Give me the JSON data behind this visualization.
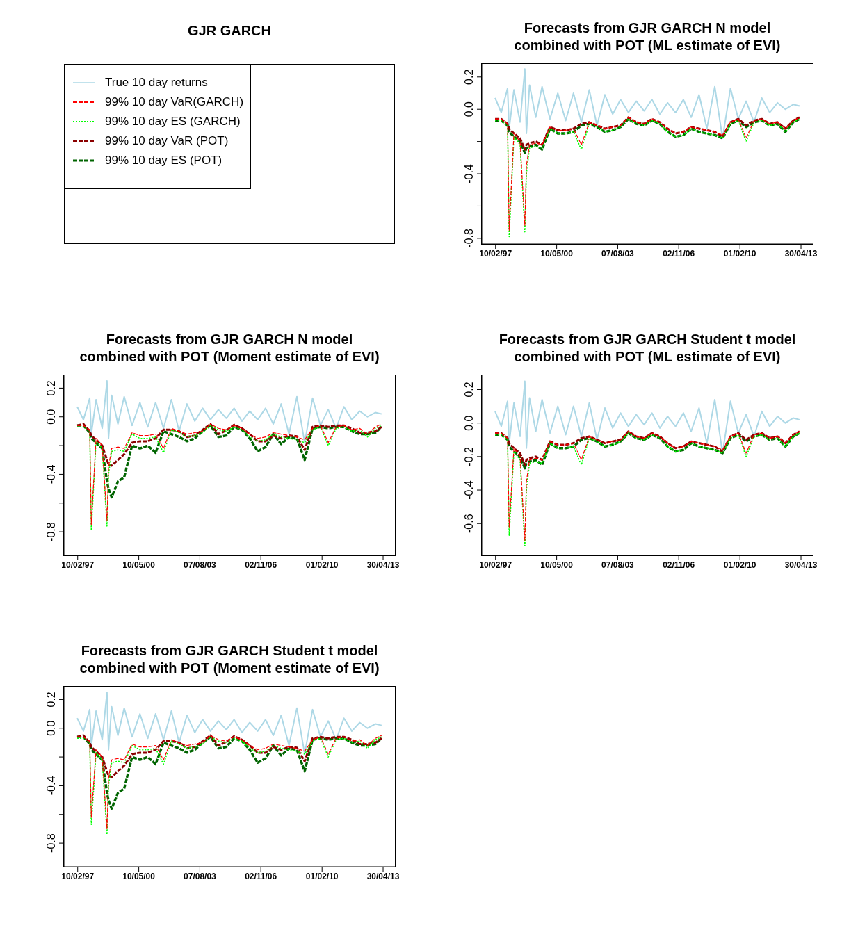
{
  "chart_data": [
    {
      "type": "other",
      "title": "GJR GARCH",
      "legend": "top left",
      "series": [
        {
          "name": "True 10 day returns",
          "color": "#add8e6",
          "line_style": "solid"
        },
        {
          "name": "99% 10 day VaR(GARCH)",
          "color": "#ff0000",
          "line_style": "dashed"
        },
        {
          "name": "99% 10 day ES (GARCH)",
          "color": "#00ff00",
          "line_style": "dotted"
        },
        {
          "name": "99% 10 day VaR (POT)",
          "color": "#8b0000",
          "line_style": "dashed"
        },
        {
          "name": "99% 10 day ES (POT)",
          "color": "#006400",
          "line_style": "dashed"
        }
      ]
    },
    {
      "type": "line",
      "title": "Forecasts from GJR GARCH N model\ncombined with POT (ML estimate of EVI)",
      "xlim": [
        "1996-05-20",
        "2013-12-15"
      ],
      "ylim": [
        -0.835,
        0.281
      ],
      "xticks": [
        {
          "value": "1997-02-10",
          "label": "10/02/97"
        },
        {
          "value": "2000-05-10",
          "label": "10/05/00"
        },
        {
          "value": "2003-08-07",
          "label": "07/08/03"
        },
        {
          "value": "2006-11-02",
          "label": "02/11/06"
        },
        {
          "value": "2010-02-01",
          "label": "01/02/10"
        },
        {
          "value": "2013-04-30",
          "label": "30/04/13"
        }
      ],
      "yticks": [
        0.2,
        {
          "value": 0,
          "label": "0.0"
        },
        {
          "value": -0.2,
          "label": null
        },
        -0.4,
        {
          "value": -0.6,
          "label": null
        },
        -0.8
      ],
      "x": [
        "1997-02",
        "1997-06",
        "1997-10",
        "1997-11",
        "1998-02",
        "1998-06",
        "1998-09",
        "1998-10",
        "1998-12",
        "1999-04",
        "1999-08",
        "2000-01",
        "2000-06",
        "2000-11",
        "2001-04",
        "2001-09",
        "2002-02",
        "2002-07",
        "2002-12",
        "2003-05",
        "2003-10",
        "2004-03",
        "2004-08",
        "2005-01",
        "2005-06",
        "2005-11",
        "2006-04",
        "2006-09",
        "2007-02",
        "2007-07",
        "2007-12",
        "2008-05",
        "2008-10",
        "2009-03",
        "2009-08",
        "2010-01",
        "2010-06",
        "2010-11",
        "2011-04",
        "2011-09",
        "2012-02",
        "2012-07",
        "2012-12",
        "2013-04"
      ],
      "series": [
        {
          "color": "#add8e6",
          "line_style": "solid",
          "values": [
            0.07,
            -0.02,
            0.13,
            -0.12,
            0.12,
            -0.08,
            0.25,
            -0.15,
            0.15,
            -0.05,
            0.14,
            -0.06,
            0.1,
            -0.07,
            0.1,
            -0.08,
            0.12,
            -0.1,
            0.09,
            -0.03,
            0.06,
            -0.02,
            0.05,
            -0.01,
            0.06,
            -0.03,
            0.04,
            -0.02,
            0.06,
            -0.05,
            0.09,
            -0.12,
            0.14,
            -0.18,
            0.13,
            -0.06,
            0.05,
            -0.08,
            0.07,
            -0.02,
            0.04,
            0.0,
            0.03,
            0.02
          ]
        },
        {
          "color": "#ff0000",
          "line_style": "dashed",
          "values": [
            -0.06,
            -0.06,
            -0.09,
            -0.75,
            -0.15,
            -0.2,
            -0.72,
            -0.35,
            -0.22,
            -0.21,
            -0.22,
            -0.11,
            -0.13,
            -0.13,
            -0.12,
            -0.22,
            -0.08,
            -0.1,
            -0.12,
            -0.11,
            -0.1,
            -0.05,
            -0.08,
            -0.09,
            -0.06,
            -0.08,
            -0.12,
            -0.15,
            -0.14,
            -0.11,
            -0.12,
            -0.13,
            -0.14,
            -0.16,
            -0.08,
            -0.06,
            -0.18,
            -0.07,
            -0.06,
            -0.09,
            -0.08,
            -0.12,
            -0.07,
            -0.05
          ]
        },
        {
          "color": "#00ff00",
          "line_style": "dotted",
          "values": [
            -0.07,
            -0.07,
            -0.1,
            -0.79,
            -0.17,
            -0.22,
            -0.76,
            -0.4,
            -0.24,
            -0.23,
            -0.24,
            -0.12,
            -0.15,
            -0.15,
            -0.14,
            -0.25,
            -0.09,
            -0.11,
            -0.14,
            -0.13,
            -0.11,
            -0.06,
            -0.09,
            -0.1,
            -0.07,
            -0.09,
            -0.14,
            -0.17,
            -0.16,
            -0.12,
            -0.14,
            -0.15,
            -0.16,
            -0.18,
            -0.09,
            -0.07,
            -0.2,
            -0.08,
            -0.07,
            -0.1,
            -0.09,
            -0.14,
            -0.08,
            -0.06
          ]
        },
        {
          "color": "#8b0000",
          "line_style": "dashed",
          "values": [
            -0.06,
            -0.06,
            -0.09,
            -0.12,
            -0.15,
            -0.18,
            -0.25,
            -0.22,
            -0.21,
            -0.2,
            -0.22,
            -0.11,
            -0.13,
            -0.13,
            -0.12,
            -0.09,
            -0.08,
            -0.1,
            -0.12,
            -0.11,
            -0.1,
            -0.05,
            -0.08,
            -0.09,
            -0.06,
            -0.08,
            -0.12,
            -0.15,
            -0.14,
            -0.11,
            -0.12,
            -0.13,
            -0.14,
            -0.17,
            -0.08,
            -0.06,
            -0.1,
            -0.07,
            -0.06,
            -0.09,
            -0.08,
            -0.12,
            -0.07,
            -0.05
          ]
        },
        {
          "color": "#006400",
          "line_style": "dashed",
          "values": [
            -0.07,
            -0.07,
            -0.1,
            -0.14,
            -0.17,
            -0.2,
            -0.27,
            -0.24,
            -0.23,
            -0.22,
            -0.25,
            -0.12,
            -0.15,
            -0.15,
            -0.14,
            -0.1,
            -0.09,
            -0.11,
            -0.14,
            -0.13,
            -0.11,
            -0.06,
            -0.09,
            -0.1,
            -0.07,
            -0.09,
            -0.14,
            -0.17,
            -0.16,
            -0.12,
            -0.14,
            -0.15,
            -0.16,
            -0.18,
            -0.09,
            -0.07,
            -0.11,
            -0.08,
            -0.07,
            -0.1,
            -0.09,
            -0.14,
            -0.08,
            -0.06
          ]
        }
      ]
    },
    {
      "type": "line",
      "title": "Forecasts from GJR GARCH N model\ncombined with POT (Moment estimate of EVI)",
      "xlim": [
        "1996-05-20",
        "2013-12-15"
      ],
      "ylim": [
        -0.964,
        0.289
      ],
      "xticks": [
        {
          "value": "1997-02-10",
          "label": "10/02/97"
        },
        {
          "value": "2000-05-10",
          "label": "10/05/00"
        },
        {
          "value": "2003-08-07",
          "label": "07/08/03"
        },
        {
          "value": "2006-11-02",
          "label": "02/11/06"
        },
        {
          "value": "2010-02-01",
          "label": "01/02/10"
        },
        {
          "value": "2013-04-30",
          "label": "30/04/13"
        }
      ],
      "yticks": [
        0.2,
        {
          "value": 0,
          "label": "0.0"
        },
        {
          "value": -0.2,
          "label": null
        },
        -0.4,
        {
          "value": -0.6,
          "label": null
        },
        -0.8
      ],
      "x": [
        "1997-02",
        "1997-06",
        "1997-10",
        "1997-11",
        "1998-02",
        "1998-06",
        "1998-09",
        "1998-10",
        "1998-12",
        "1999-04",
        "1999-08",
        "2000-01",
        "2000-06",
        "2000-11",
        "2001-04",
        "2001-09",
        "2002-02",
        "2002-07",
        "2002-12",
        "2003-05",
        "2003-10",
        "2004-03",
        "2004-08",
        "2005-01",
        "2005-06",
        "2005-11",
        "2006-04",
        "2006-09",
        "2007-02",
        "2007-07",
        "2007-12",
        "2008-05",
        "2008-10",
        "2009-03",
        "2009-08",
        "2010-01",
        "2010-06",
        "2010-11",
        "2011-04",
        "2011-09",
        "2012-02",
        "2012-07",
        "2012-12",
        "2013-04"
      ],
      "series": [
        {
          "color": "#add8e6",
          "line_style": "solid",
          "values": [
            0.07,
            -0.02,
            0.13,
            -0.12,
            0.12,
            -0.08,
            0.25,
            -0.15,
            0.15,
            -0.05,
            0.14,
            -0.06,
            0.1,
            -0.07,
            0.1,
            -0.08,
            0.12,
            -0.1,
            0.09,
            -0.03,
            0.06,
            -0.02,
            0.05,
            -0.01,
            0.06,
            -0.03,
            0.04,
            -0.02,
            0.06,
            -0.05,
            0.09,
            -0.12,
            0.14,
            -0.18,
            0.13,
            -0.06,
            0.05,
            -0.08,
            0.07,
            -0.02,
            0.04,
            0.0,
            0.03,
            0.02
          ]
        },
        {
          "color": "#ff0000",
          "line_style": "dashed",
          "values": [
            -0.06,
            -0.06,
            -0.09,
            -0.75,
            -0.15,
            -0.2,
            -0.72,
            -0.35,
            -0.22,
            -0.21,
            -0.22,
            -0.11,
            -0.13,
            -0.13,
            -0.12,
            -0.22,
            -0.08,
            -0.1,
            -0.12,
            -0.11,
            -0.1,
            -0.05,
            -0.08,
            -0.09,
            -0.06,
            -0.08,
            -0.12,
            -0.15,
            -0.14,
            -0.11,
            -0.12,
            -0.13,
            -0.14,
            -0.16,
            -0.08,
            -0.06,
            -0.18,
            -0.07,
            -0.06,
            -0.09,
            -0.08,
            -0.12,
            -0.07,
            -0.05
          ]
        },
        {
          "color": "#00ff00",
          "line_style": "dotted",
          "values": [
            -0.07,
            -0.07,
            -0.1,
            -0.79,
            -0.17,
            -0.22,
            -0.76,
            -0.4,
            -0.24,
            -0.23,
            -0.24,
            -0.12,
            -0.15,
            -0.15,
            -0.14,
            -0.25,
            -0.09,
            -0.11,
            -0.14,
            -0.13,
            -0.11,
            -0.06,
            -0.09,
            -0.1,
            -0.07,
            -0.09,
            -0.14,
            -0.17,
            -0.16,
            -0.12,
            -0.14,
            -0.15,
            -0.16,
            -0.18,
            -0.09,
            -0.07,
            -0.2,
            -0.08,
            -0.07,
            -0.1,
            -0.09,
            -0.14,
            -0.08,
            -0.06
          ]
        },
        {
          "color": "#8b0000",
          "line_style": "dashed",
          "values": [
            -0.06,
            -0.05,
            -0.1,
            -0.13,
            -0.16,
            -0.2,
            -0.3,
            -0.33,
            -0.34,
            -0.3,
            -0.26,
            -0.18,
            -0.17,
            -0.17,
            -0.15,
            -0.09,
            -0.09,
            -0.1,
            -0.14,
            -0.13,
            -0.09,
            -0.05,
            -0.12,
            -0.095,
            -0.055,
            -0.08,
            -0.12,
            -0.17,
            -0.17,
            -0.13,
            -0.15,
            -0.13,
            -0.135,
            -0.23,
            -0.07,
            -0.06,
            -0.07,
            -0.06,
            -0.06,
            -0.08,
            -0.11,
            -0.11,
            -0.1,
            -0.07
          ]
        },
        {
          "color": "#006400",
          "line_style": "dashed",
          "values": [
            -0.06,
            -0.06,
            -0.11,
            -0.15,
            -0.18,
            -0.22,
            -0.45,
            -0.5,
            -0.56,
            -0.45,
            -0.42,
            -0.2,
            -0.22,
            -0.2,
            -0.25,
            -0.1,
            -0.12,
            -0.14,
            -0.17,
            -0.15,
            -0.1,
            -0.06,
            -0.14,
            -0.13,
            -0.07,
            -0.09,
            -0.15,
            -0.24,
            -0.21,
            -0.12,
            -0.19,
            -0.14,
            -0.15,
            -0.3,
            -0.08,
            -0.07,
            -0.08,
            -0.07,
            -0.07,
            -0.1,
            -0.12,
            -0.12,
            -0.11,
            -0.07
          ]
        }
      ]
    },
    {
      "type": "line",
      "title": "Forecasts from GJR GARCH Student t model\ncombined with POT (ML estimate of EVI)",
      "xlim": [
        "1996-05-20",
        "2013-12-15"
      ],
      "ylim": [
        -0.79,
        0.285
      ],
      "xticks": [
        {
          "value": "1997-02-10",
          "label": "10/02/97"
        },
        {
          "value": "2000-05-10",
          "label": "10/05/00"
        },
        {
          "value": "2003-08-07",
          "label": "07/08/03"
        },
        {
          "value": "2006-11-02",
          "label": "02/11/06"
        },
        {
          "value": "2010-02-01",
          "label": "01/02/10"
        },
        {
          "value": "2013-04-30",
          "label": "30/04/13"
        }
      ],
      "yticks": [
        0.2,
        {
          "value": 0,
          "label": "0.0"
        },
        -0.2,
        -0.4,
        -0.6
      ],
      "x": [
        "1997-02",
        "1997-06",
        "1997-10",
        "1997-11",
        "1998-02",
        "1998-06",
        "1998-09",
        "1998-10",
        "1998-12",
        "1999-04",
        "1999-08",
        "2000-01",
        "2000-06",
        "2000-11",
        "2001-04",
        "2001-09",
        "2002-02",
        "2002-07",
        "2002-12",
        "2003-05",
        "2003-10",
        "2004-03",
        "2004-08",
        "2005-01",
        "2005-06",
        "2005-11",
        "2006-04",
        "2006-09",
        "2007-02",
        "2007-07",
        "2007-12",
        "2008-05",
        "2008-10",
        "2009-03",
        "2009-08",
        "2010-01",
        "2010-06",
        "2010-11",
        "2011-04",
        "2011-09",
        "2012-02",
        "2012-07",
        "2012-12",
        "2013-04"
      ],
      "series": [
        {
          "color": "#add8e6",
          "line_style": "solid",
          "values": [
            0.07,
            -0.02,
            0.13,
            -0.12,
            0.12,
            -0.08,
            0.25,
            -0.15,
            0.15,
            -0.05,
            0.14,
            -0.06,
            0.1,
            -0.07,
            0.1,
            -0.08,
            0.12,
            -0.1,
            0.09,
            -0.03,
            0.06,
            -0.02,
            0.05,
            -0.01,
            0.06,
            -0.03,
            0.04,
            -0.02,
            0.06,
            -0.05,
            0.09,
            -0.12,
            0.14,
            -0.18,
            0.13,
            -0.06,
            0.05,
            -0.08,
            0.07,
            -0.02,
            0.04,
            0.0,
            0.03,
            0.02
          ]
        },
        {
          "color": "#ff0000",
          "line_style": "dashed",
          "values": [
            -0.06,
            -0.06,
            -0.09,
            -0.62,
            -0.15,
            -0.2,
            -0.7,
            -0.35,
            -0.22,
            -0.21,
            -0.22,
            -0.11,
            -0.13,
            -0.13,
            -0.12,
            -0.22,
            -0.08,
            -0.1,
            -0.12,
            -0.11,
            -0.1,
            -0.05,
            -0.08,
            -0.09,
            -0.06,
            -0.08,
            -0.12,
            -0.15,
            -0.14,
            -0.11,
            -0.12,
            -0.13,
            -0.14,
            -0.16,
            -0.08,
            -0.06,
            -0.18,
            -0.07,
            -0.06,
            -0.09,
            -0.08,
            -0.12,
            -0.07,
            -0.05
          ]
        },
        {
          "color": "#00ff00",
          "line_style": "dotted",
          "values": [
            -0.07,
            -0.07,
            -0.1,
            -0.67,
            -0.17,
            -0.22,
            -0.74,
            -0.4,
            -0.24,
            -0.23,
            -0.24,
            -0.12,
            -0.15,
            -0.15,
            -0.14,
            -0.25,
            -0.09,
            -0.11,
            -0.14,
            -0.13,
            -0.11,
            -0.06,
            -0.09,
            -0.1,
            -0.07,
            -0.09,
            -0.14,
            -0.17,
            -0.16,
            -0.12,
            -0.14,
            -0.15,
            -0.16,
            -0.18,
            -0.09,
            -0.07,
            -0.2,
            -0.08,
            -0.07,
            -0.1,
            -0.09,
            -0.14,
            -0.08,
            -0.06
          ]
        },
        {
          "color": "#8b0000",
          "line_style": "dashed",
          "values": [
            -0.06,
            -0.06,
            -0.09,
            -0.12,
            -0.15,
            -0.18,
            -0.25,
            -0.22,
            -0.21,
            -0.2,
            -0.22,
            -0.11,
            -0.13,
            -0.13,
            -0.12,
            -0.09,
            -0.08,
            -0.1,
            -0.12,
            -0.11,
            -0.1,
            -0.05,
            -0.08,
            -0.09,
            -0.06,
            -0.08,
            -0.12,
            -0.15,
            -0.14,
            -0.11,
            -0.12,
            -0.13,
            -0.14,
            -0.17,
            -0.08,
            -0.06,
            -0.1,
            -0.07,
            -0.06,
            -0.09,
            -0.08,
            -0.12,
            -0.07,
            -0.05
          ]
        },
        {
          "color": "#006400",
          "line_style": "dashed",
          "values": [
            -0.07,
            -0.07,
            -0.1,
            -0.14,
            -0.17,
            -0.2,
            -0.27,
            -0.24,
            -0.23,
            -0.22,
            -0.25,
            -0.12,
            -0.15,
            -0.15,
            -0.14,
            -0.1,
            -0.09,
            -0.11,
            -0.14,
            -0.13,
            -0.11,
            -0.06,
            -0.09,
            -0.1,
            -0.07,
            -0.09,
            -0.14,
            -0.17,
            -0.16,
            -0.12,
            -0.14,
            -0.15,
            -0.16,
            -0.18,
            -0.09,
            -0.07,
            -0.11,
            -0.08,
            -0.07,
            -0.1,
            -0.09,
            -0.14,
            -0.08,
            -0.06
          ]
        }
      ]
    },
    {
      "type": "line",
      "title": "Forecasts from GJR GARCH Student t model\ncombined with POT (Moment estimate of EVI)",
      "xlim": [
        "1996-05-20",
        "2013-12-15"
      ],
      "ylim": [
        -0.964,
        0.289
      ],
      "xticks": [
        {
          "value": "1997-02-10",
          "label": "10/02/97"
        },
        {
          "value": "2000-05-10",
          "label": "10/05/00"
        },
        {
          "value": "2003-08-07",
          "label": "07/08/03"
        },
        {
          "value": "2006-11-02",
          "label": "02/11/06"
        },
        {
          "value": "2010-02-01",
          "label": "01/02/10"
        },
        {
          "value": "2013-04-30",
          "label": "30/04/13"
        }
      ],
      "yticks": [
        0.2,
        {
          "value": 0,
          "label": "0.0"
        },
        {
          "value": -0.2,
          "label": null
        },
        -0.4,
        {
          "value": -0.6,
          "label": null
        },
        -0.8
      ],
      "x": [
        "1997-02",
        "1997-06",
        "1997-10",
        "1997-11",
        "1998-02",
        "1998-06",
        "1998-09",
        "1998-10",
        "1998-12",
        "1999-04",
        "1999-08",
        "2000-01",
        "2000-06",
        "2000-11",
        "2001-04",
        "2001-09",
        "2002-02",
        "2002-07",
        "2002-12",
        "2003-05",
        "2003-10",
        "2004-03",
        "2004-08",
        "2005-01",
        "2005-06",
        "2005-11",
        "2006-04",
        "2006-09",
        "2007-02",
        "2007-07",
        "2007-12",
        "2008-05",
        "2008-10",
        "2009-03",
        "2009-08",
        "2010-01",
        "2010-06",
        "2010-11",
        "2011-04",
        "2011-09",
        "2012-02",
        "2012-07",
        "2012-12",
        "2013-04"
      ],
      "series": [
        {
          "color": "#add8e6",
          "line_style": "solid",
          "values": [
            0.07,
            -0.02,
            0.13,
            -0.12,
            0.12,
            -0.08,
            0.25,
            -0.15,
            0.15,
            -0.05,
            0.14,
            -0.06,
            0.1,
            -0.07,
            0.1,
            -0.08,
            0.12,
            -0.1,
            0.09,
            -0.03,
            0.06,
            -0.02,
            0.05,
            -0.01,
            0.06,
            -0.03,
            0.04,
            -0.02,
            0.06,
            -0.05,
            0.09,
            -0.12,
            0.14,
            -0.18,
            0.13,
            -0.06,
            0.05,
            -0.08,
            0.07,
            -0.02,
            0.04,
            0.0,
            0.03,
            0.02
          ]
        },
        {
          "color": "#ff0000",
          "line_style": "dashed",
          "values": [
            -0.06,
            -0.06,
            -0.09,
            -0.62,
            -0.15,
            -0.2,
            -0.7,
            -0.35,
            -0.22,
            -0.21,
            -0.22,
            -0.11,
            -0.13,
            -0.13,
            -0.12,
            -0.22,
            -0.08,
            -0.1,
            -0.12,
            -0.11,
            -0.1,
            -0.05,
            -0.08,
            -0.09,
            -0.06,
            -0.08,
            -0.12,
            -0.15,
            -0.14,
            -0.11,
            -0.12,
            -0.13,
            -0.14,
            -0.16,
            -0.08,
            -0.06,
            -0.18,
            -0.07,
            -0.06,
            -0.09,
            -0.08,
            -0.12,
            -0.07,
            -0.05
          ]
        },
        {
          "color": "#00ff00",
          "line_style": "dotted",
          "values": [
            -0.07,
            -0.07,
            -0.1,
            -0.67,
            -0.17,
            -0.22,
            -0.74,
            -0.4,
            -0.24,
            -0.23,
            -0.24,
            -0.12,
            -0.15,
            -0.15,
            -0.14,
            -0.25,
            -0.09,
            -0.11,
            -0.14,
            -0.13,
            -0.11,
            -0.06,
            -0.09,
            -0.1,
            -0.07,
            -0.09,
            -0.14,
            -0.17,
            -0.16,
            -0.12,
            -0.14,
            -0.15,
            -0.16,
            -0.18,
            -0.09,
            -0.07,
            -0.2,
            -0.08,
            -0.07,
            -0.1,
            -0.09,
            -0.14,
            -0.08,
            -0.06
          ]
        },
        {
          "color": "#8b0000",
          "line_style": "dashed",
          "values": [
            -0.06,
            -0.05,
            -0.1,
            -0.13,
            -0.16,
            -0.2,
            -0.3,
            -0.33,
            -0.34,
            -0.3,
            -0.26,
            -0.18,
            -0.17,
            -0.17,
            -0.15,
            -0.09,
            -0.09,
            -0.1,
            -0.14,
            -0.13,
            -0.09,
            -0.05,
            -0.12,
            -0.095,
            -0.055,
            -0.08,
            -0.12,
            -0.17,
            -0.17,
            -0.13,
            -0.15,
            -0.13,
            -0.135,
            -0.23,
            -0.07,
            -0.06,
            -0.07,
            -0.06,
            -0.06,
            -0.08,
            -0.11,
            -0.11,
            -0.1,
            -0.07
          ]
        },
        {
          "color": "#006400",
          "line_style": "dashed",
          "values": [
            -0.06,
            -0.06,
            -0.11,
            -0.15,
            -0.18,
            -0.22,
            -0.45,
            -0.5,
            -0.56,
            -0.45,
            -0.42,
            -0.2,
            -0.22,
            -0.2,
            -0.25,
            -0.1,
            -0.12,
            -0.14,
            -0.17,
            -0.15,
            -0.1,
            -0.06,
            -0.14,
            -0.13,
            -0.07,
            -0.09,
            -0.15,
            -0.24,
            -0.21,
            -0.12,
            -0.19,
            -0.14,
            -0.15,
            -0.3,
            -0.08,
            -0.07,
            -0.08,
            -0.07,
            -0.07,
            -0.1,
            -0.12,
            -0.12,
            -0.11,
            -0.07
          ]
        }
      ]
    }
  ]
}
